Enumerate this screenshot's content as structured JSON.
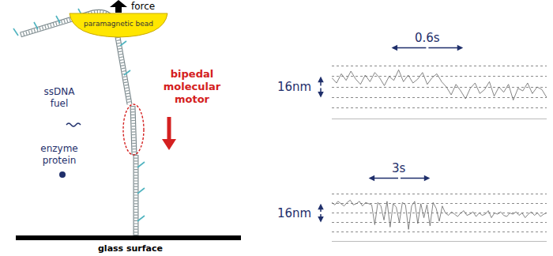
{
  "diagram": {
    "force": "force",
    "bead": "paramagnetic bead",
    "fuel": [
      "ssDNA",
      "fuel"
    ],
    "enzyme": [
      "enzyme",
      "protein"
    ],
    "motor": [
      "bipedal",
      "molecular",
      "motor"
    ],
    "surface": "glass surface"
  },
  "chart_data": [
    {
      "type": "line",
      "color": "#666666",
      "xlim": [
        0,
        1.8
      ],
      "ylim": [
        0,
        48
      ],
      "yticks": [
        0,
        8,
        16,
        24,
        32,
        40,
        48
      ],
      "grid": true,
      "tick_labels": false,
      "x": [
        0,
        0.04,
        0.08,
        0.12,
        0.16,
        0.2,
        0.24,
        0.28,
        0.32,
        0.36,
        0.4,
        0.44,
        0.48,
        0.52,
        0.56,
        0.6,
        0.64,
        0.68,
        0.72,
        0.76,
        0.8,
        0.84,
        0.88,
        0.92,
        0.96,
        1,
        1.04,
        1.08,
        1.12,
        1.16,
        1.2,
        1.24,
        1.28,
        1.32,
        1.36,
        1.4,
        1.44,
        1.48,
        1.52,
        1.56,
        1.6,
        1.64,
        1.68,
        1.72,
        1.76,
        1.8
      ],
      "values": [
        31,
        27,
        34,
        29,
        36,
        30,
        26,
        33,
        28,
        35,
        31,
        25,
        32,
        29,
        37,
        28,
        33,
        27,
        30,
        35,
        26,
        31,
        34,
        28,
        24,
        18,
        26,
        21,
        15,
        23,
        27,
        19,
        22,
        28,
        17,
        24,
        20,
        26,
        14,
        23,
        21,
        27,
        19,
        24,
        22,
        16
      ],
      "y_scale_bar": {
        "label": "16nm",
        "value": 16
      },
      "x_scale_bar": {
        "label": "0.6s",
        "value": 0.6,
        "from": 0.5
      }
    },
    {
      "type": "line",
      "color": "#666666",
      "xlim": [
        0,
        10.5
      ],
      "ylim": [
        0,
        48
      ],
      "yticks": [
        0,
        8,
        16,
        24,
        32,
        40,
        48
      ],
      "grid": true,
      "tick_labels": false,
      "x": [
        0,
        0.15,
        0.3,
        0.45,
        0.6,
        0.75,
        0.9,
        1.05,
        1.2,
        1.35,
        1.5,
        1.65,
        1.8,
        1.95,
        2.1,
        2.25,
        2.4,
        2.55,
        2.7,
        2.85,
        3,
        3.15,
        3.3,
        3.45,
        3.6,
        3.75,
        3.9,
        4.05,
        4.2,
        4.35,
        4.5,
        4.65,
        4.8,
        4.95,
        5.1,
        5.25,
        5.4,
        5.55,
        5.7,
        5.85,
        6,
        6.15,
        6.3,
        6.45,
        6.6,
        6.75,
        6.9,
        7.05,
        7.2,
        7.35,
        7.5,
        7.65,
        7.8,
        7.95,
        8.1,
        8.25,
        8.4,
        8.55,
        8.7,
        8.85,
        9,
        9.15,
        9.3,
        9.45,
        9.6,
        9.75,
        9.9,
        10.05,
        10.2,
        10.35,
        10.5
      ],
      "values": [
        33,
        31,
        34,
        32,
        30,
        33,
        35,
        31,
        32,
        34,
        30,
        33,
        32,
        31,
        14,
        33,
        30,
        18,
        34,
        12,
        32,
        29,
        16,
        33,
        31,
        10,
        30,
        34,
        15,
        32,
        20,
        31,
        13,
        33,
        28,
        17,
        30,
        24,
        22,
        25,
        23,
        21,
        24,
        26,
        22,
        23,
        25,
        21,
        24,
        22,
        23,
        26,
        20,
        24,
        23,
        25,
        22,
        21,
        24,
        23,
        25,
        22,
        24,
        20,
        23,
        25,
        22,
        24,
        21,
        23,
        24
      ],
      "y_scale_bar": {
        "label": "16nm",
        "value": 16
      },
      "x_scale_bar": {
        "label": "3s",
        "value": 3,
        "from": 1.8
      }
    }
  ]
}
